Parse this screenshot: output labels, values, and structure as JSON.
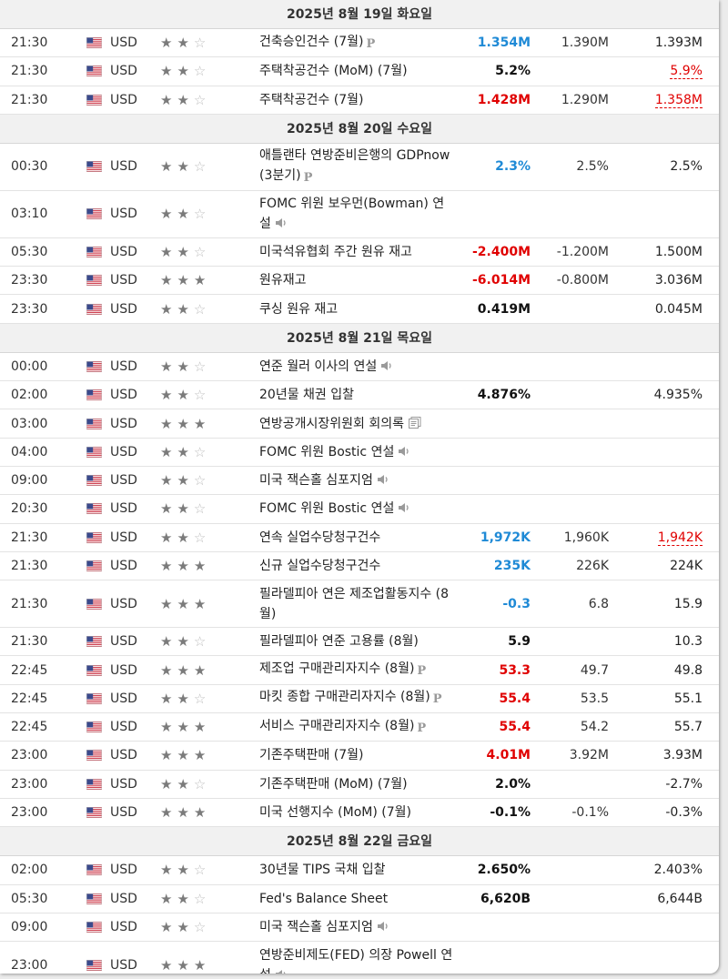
{
  "days": [
    {
      "date": "2025년 8월 19일 화요일",
      "events": [
        {
          "time": "21:30",
          "currency": "USD",
          "stars": 2,
          "event": "건축승인건수 (7월)",
          "icon": "p",
          "actual": "1.354M",
          "actual_class": "pos",
          "forecast": "1.390M",
          "previous": "1.393M",
          "previous_revised": false
        },
        {
          "time": "21:30",
          "currency": "USD",
          "stars": 2,
          "event": "주택착공건수 (MoM) (7월)",
          "icon": "",
          "actual": "5.2%",
          "actual_class": "neutral",
          "forecast": "",
          "previous": "5.9%",
          "previous_revised": true
        },
        {
          "time": "21:30",
          "currency": "USD",
          "stars": 2,
          "event": "주택착공건수 (7월)",
          "icon": "",
          "actual": "1.428M",
          "actual_class": "neg",
          "forecast": "1.290M",
          "previous": "1.358M",
          "previous_revised": true
        }
      ]
    },
    {
      "date": "2025년 8월 20일 수요일",
      "events": [
        {
          "time": "00:30",
          "currency": "USD",
          "stars": 2,
          "event": "애틀랜타 연방준비은행의 GDPnow (3분기)",
          "icon": "p",
          "tall": true,
          "actual": "2.3%",
          "actual_class": "pos",
          "forecast": "2.5%",
          "previous": "2.5%",
          "previous_revised": false
        },
        {
          "time": "03:10",
          "currency": "USD",
          "stars": 2,
          "event": "FOMC 위원 보우먼(Bowman) 연설",
          "icon": "speaker",
          "tall": true,
          "actual": "",
          "actual_class": "neutral",
          "forecast": "",
          "previous": "",
          "previous_revised": false
        },
        {
          "time": "05:30",
          "currency": "USD",
          "stars": 2,
          "event": "미국석유협회 주간 원유 재고",
          "icon": "",
          "actual": "-2.400M",
          "actual_class": "neg",
          "forecast": "-1.200M",
          "previous": "1.500M",
          "previous_revised": false
        },
        {
          "time": "23:30",
          "currency": "USD",
          "stars": 3,
          "event": "원유재고",
          "icon": "",
          "actual": "-6.014M",
          "actual_class": "neg",
          "forecast": "-0.800M",
          "previous": "3.036M",
          "previous_revised": false
        },
        {
          "time": "23:30",
          "currency": "USD",
          "stars": 2,
          "event": "쿠싱 원유 재고",
          "icon": "",
          "actual": "0.419M",
          "actual_class": "neutral",
          "forecast": "",
          "previous": "0.045M",
          "previous_revised": false
        }
      ]
    },
    {
      "date": "2025년 8월 21일 목요일",
      "events": [
        {
          "time": "00:00",
          "currency": "USD",
          "stars": 2,
          "event": "연준 월러 이사의 연설",
          "icon": "speaker",
          "actual": "",
          "actual_class": "neutral",
          "forecast": "",
          "previous": "",
          "previous_revised": false
        },
        {
          "time": "02:00",
          "currency": "USD",
          "stars": 2,
          "event": "20년물 채권 입찰",
          "icon": "",
          "actual": "4.876%",
          "actual_class": "neutral",
          "forecast": "",
          "previous": "4.935%",
          "previous_revised": false
        },
        {
          "time": "03:00",
          "currency": "USD",
          "stars": 3,
          "event": "연방공개시장위원회 회의록",
          "icon": "doc",
          "actual": "",
          "actual_class": "neutral",
          "forecast": "",
          "previous": "",
          "previous_revised": false
        },
        {
          "time": "04:00",
          "currency": "USD",
          "stars": 2,
          "event": "FOMC 위원 Bostic 연설",
          "icon": "speaker",
          "actual": "",
          "actual_class": "neutral",
          "forecast": "",
          "previous": "",
          "previous_revised": false
        },
        {
          "time": "09:00",
          "currency": "USD",
          "stars": 2,
          "event": "미국 잭슨홀 심포지엄",
          "icon": "speaker",
          "actual": "",
          "actual_class": "neutral",
          "forecast": "",
          "previous": "",
          "previous_revised": false
        },
        {
          "time": "20:30",
          "currency": "USD",
          "stars": 2,
          "event": "FOMC 위원 Bostic 연설",
          "icon": "speaker",
          "actual": "",
          "actual_class": "neutral",
          "forecast": "",
          "previous": "",
          "previous_revised": false
        },
        {
          "time": "21:30",
          "currency": "USD",
          "stars": 2,
          "event": "연속 실업수당청구건수",
          "icon": "",
          "actual": "1,972K",
          "actual_class": "pos",
          "forecast": "1,960K",
          "previous": "1,942K",
          "previous_revised": true
        },
        {
          "time": "21:30",
          "currency": "USD",
          "stars": 3,
          "event": "신규 실업수당청구건수",
          "icon": "",
          "actual": "235K",
          "actual_class": "pos",
          "forecast": "226K",
          "previous": "224K",
          "previous_revised": false
        },
        {
          "time": "21:30",
          "currency": "USD",
          "stars": 3,
          "event": "필라델피아 연은 제조업활동지수 (8월)",
          "icon": "",
          "tall": true,
          "actual": "-0.3",
          "actual_class": "pos",
          "forecast": "6.8",
          "previous": "15.9",
          "previous_revised": false
        },
        {
          "time": "21:30",
          "currency": "USD",
          "stars": 2,
          "event": "필라델피아 연준 고용률 (8월)",
          "icon": "",
          "actual": "5.9",
          "actual_class": "neutral",
          "forecast": "",
          "previous": "10.3",
          "previous_revised": false
        },
        {
          "time": "22:45",
          "currency": "USD",
          "stars": 3,
          "event": "제조업 구매관리자지수 (8월)",
          "icon": "p",
          "actual": "53.3",
          "actual_class": "neg",
          "forecast": "49.7",
          "previous": "49.8",
          "previous_revised": false
        },
        {
          "time": "22:45",
          "currency": "USD",
          "stars": 2,
          "event": "마킷 종합 구매관리자지수 (8월)",
          "icon": "p",
          "actual": "55.4",
          "actual_class": "neg",
          "forecast": "53.5",
          "previous": "55.1",
          "previous_revised": false
        },
        {
          "time": "22:45",
          "currency": "USD",
          "stars": 3,
          "event": "서비스 구매관리자지수 (8월)",
          "icon": "p",
          "actual": "55.4",
          "actual_class": "neg",
          "forecast": "54.2",
          "previous": "55.7",
          "previous_revised": false
        },
        {
          "time": "23:00",
          "currency": "USD",
          "stars": 3,
          "event": "기존주택판매 (7월)",
          "icon": "",
          "actual": "4.01M",
          "actual_class": "neg",
          "forecast": "3.92M",
          "previous": "3.93M",
          "previous_revised": false
        },
        {
          "time": "23:00",
          "currency": "USD",
          "stars": 2,
          "event": "기존주택판매 (MoM) (7월)",
          "icon": "",
          "actual": "2.0%",
          "actual_class": "neutral",
          "forecast": "",
          "previous": "-2.7%",
          "previous_revised": false
        },
        {
          "time": "23:00",
          "currency": "USD",
          "stars": 3,
          "event": "미국 선행지수 (MoM) (7월)",
          "icon": "",
          "actual": "-0.1%",
          "actual_class": "neutral",
          "forecast": "-0.1%",
          "previous": "-0.3%",
          "previous_revised": false
        }
      ]
    },
    {
      "date": "2025년 8월 22일 금요일",
      "events": [
        {
          "time": "02:00",
          "currency": "USD",
          "stars": 2,
          "event": "30년물 TIPS 국채 입찰",
          "icon": "",
          "actual": "2.650%",
          "actual_class": "neutral",
          "forecast": "",
          "previous": "2.403%",
          "previous_revised": false
        },
        {
          "time": "05:30",
          "currency": "USD",
          "stars": 2,
          "event": "Fed's Balance Sheet",
          "icon": "",
          "actual": "6,620B",
          "actual_class": "neutral",
          "forecast": "",
          "previous": "6,644B",
          "previous_revised": false
        },
        {
          "time": "09:00",
          "currency": "USD",
          "stars": 2,
          "event": "미국 잭슨홀 심포지엄",
          "icon": "speaker",
          "actual": "",
          "actual_class": "neutral",
          "forecast": "",
          "previous": "",
          "previous_revised": false
        },
        {
          "time": "23:00",
          "currency": "USD",
          "stars": 3,
          "event": "연방준비제도(FED) 의장 Powell 연설",
          "icon": "speaker",
          "tall": true,
          "actual": "",
          "actual_class": "neutral",
          "forecast": "",
          "previous": "",
          "previous_revised": false
        }
      ]
    }
  ],
  "icon_glyphs": {
    "p": "P",
    "star": "★",
    "star_off": "☆"
  },
  "colors": {
    "positive": "#1f8ad6",
    "negative": "#e00000",
    "neutral": "#111111",
    "star_on": "#7b7b7b",
    "star_off": "#bdbdbd"
  }
}
